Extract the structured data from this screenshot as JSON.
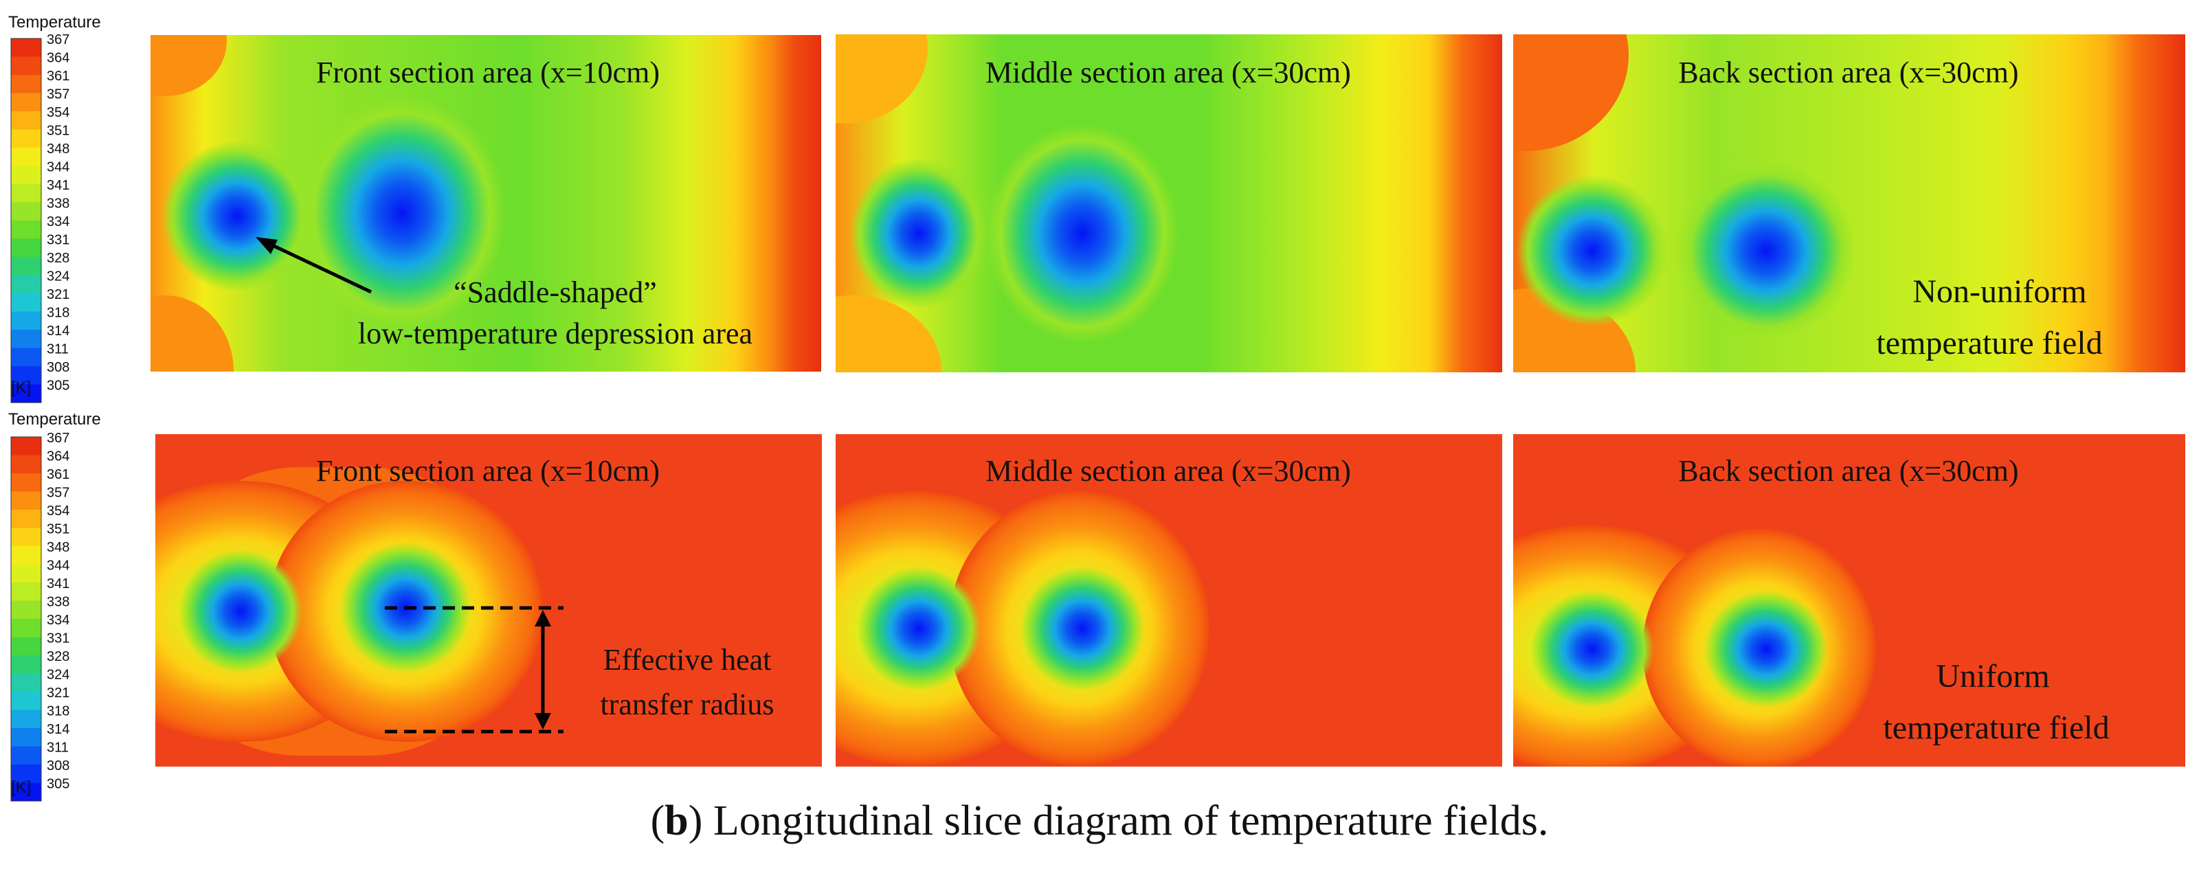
{
  "colorbar": {
    "title": "Temperature",
    "unit": "[K]",
    "ticks": [
      "367",
      "364",
      "361",
      "357",
      "354",
      "351",
      "348",
      "344",
      "341",
      "338",
      "334",
      "331",
      "328",
      "324",
      "321",
      "318",
      "314",
      "311",
      "308",
      "305"
    ],
    "colors": [
      "#e83010",
      "#f04a10",
      "#f76a10",
      "#fb9010",
      "#fdb312",
      "#fcd314",
      "#f4ec18",
      "#dcf01e",
      "#bcec22",
      "#98e428",
      "#6ede2c",
      "#46d640",
      "#2ed070",
      "#26cca8",
      "#1ec6d4",
      "#16a8e6",
      "#1080ee",
      "#0c58f2",
      "#0834f4",
      "#0414f4"
    ]
  },
  "rows": [
    {
      "panels": [
        {
          "title": "Front section area (x=10cm)"
        },
        {
          "title": "Middle section area (x=30cm)"
        },
        {
          "title": "Back section area (x=30cm)"
        }
      ],
      "annotations": {
        "saddle_line1": "“Saddle-shaped”",
        "saddle_line2": "low-temperature depression area",
        "field_line1": "Non-uniform",
        "field_line2": "temperature field"
      }
    },
    {
      "panels": [
        {
          "title": "Front section area (x=10cm)"
        },
        {
          "title": "Middle section area (x=30cm)"
        },
        {
          "title": "Back section area (x=30cm)"
        }
      ],
      "annotations": {
        "radius_line1": "Effective heat",
        "radius_line2": "transfer radius",
        "field_line1": "Uniform",
        "field_line2": "temperature field"
      }
    }
  ],
  "caption": {
    "label": "b",
    "text": " Longitudinal slice diagram of temperature fields."
  }
}
